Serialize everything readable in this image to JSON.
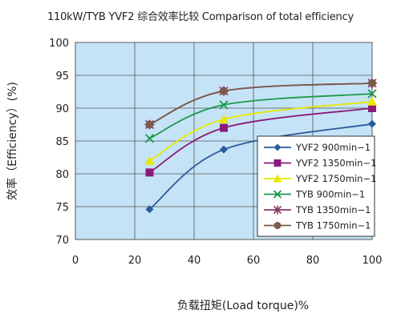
{
  "chart_data": {
    "type": "line",
    "title": "110kW/TYB YVF2 综合效率比较  Comparison of total efficiency",
    "xlabel": "负载扭矩(Load torque)%",
    "ylabel": "效率（Efficiency）(%)",
    "xlim": [
      0,
      100
    ],
    "ylim": [
      70,
      100
    ],
    "xticks": [
      "0",
      "20",
      "40",
      "60",
      "80",
      "100"
    ],
    "yticks": [
      "70",
      "75",
      "80",
      "85",
      "90",
      "95",
      "100"
    ],
    "x": [
      25,
      50,
      100
    ],
    "grid": true,
    "legend_position": "lower-right",
    "series": [
      {
        "name": "YVF2   900min−1",
        "color": "#2a5a9a",
        "marker": "diamond",
        "values": [
          74.6,
          83.7,
          87.6
        ]
      },
      {
        "name": "YVF2 1350min−1",
        "color": "#8a1a7a",
        "marker": "square",
        "values": [
          80.2,
          87.0,
          90.0
        ]
      },
      {
        "name": "YVF2 1750min−1",
        "color": "#e8e800",
        "marker": "triangle",
        "values": [
          82.0,
          88.3,
          91.0
        ]
      },
      {
        "name": "TYB 900min−1",
        "color": "#1a9a4a",
        "marker": "x",
        "values": [
          85.4,
          90.5,
          92.2
        ]
      },
      {
        "name": "TYB 1350min−1",
        "color": "#8a3a6a",
        "marker": "star",
        "values": [
          87.5,
          92.6,
          93.8
        ]
      },
      {
        "name": "TYB 1750min−1",
        "color": "#7a5a4a",
        "marker": "circle",
        "values": [
          87.5,
          92.6,
          93.8
        ]
      }
    ]
  }
}
